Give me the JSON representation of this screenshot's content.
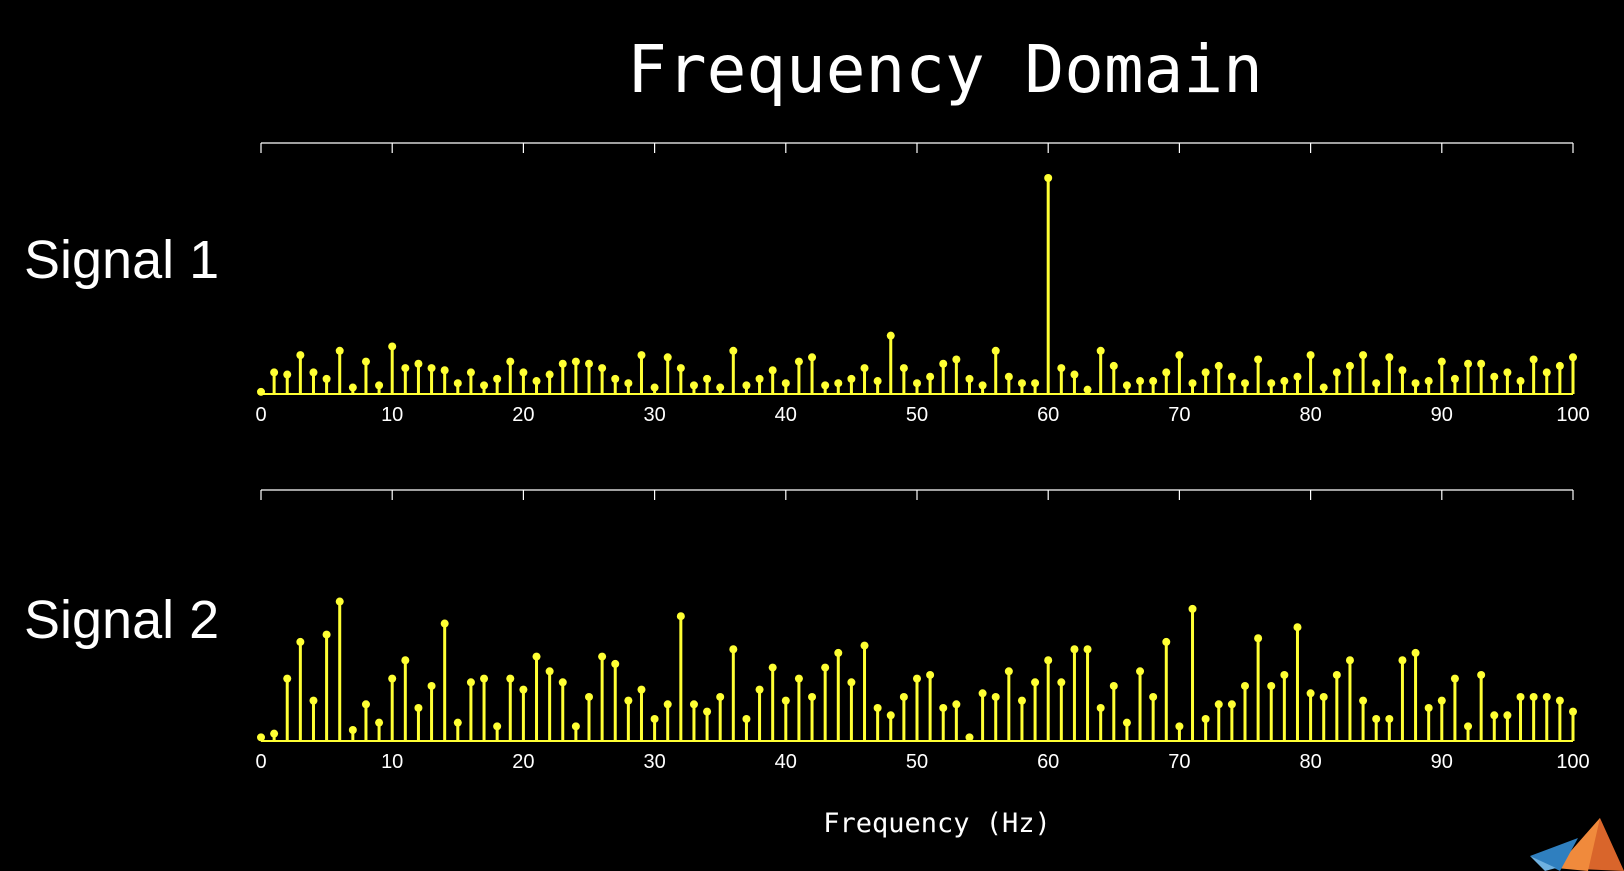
{
  "title": "Frequency Domain",
  "xlabel": "Frequency (Hz)",
  "colors": {
    "background": "#000000",
    "stem": "#ffff33",
    "text": "#ffffff",
    "axis": "#ffffff"
  },
  "logo_icon": "matlab-membrane-logo-icon",
  "chart_data": [
    {
      "type": "stem",
      "name": "Signal 1",
      "xlim": [
        0,
        100
      ],
      "ylim": [
        0,
        1
      ],
      "x_ticks": [
        0,
        10,
        20,
        30,
        40,
        50,
        60,
        70,
        80,
        90,
        100
      ],
      "x": [
        0,
        1,
        2,
        3,
        4,
        5,
        6,
        7,
        8,
        9,
        10,
        11,
        12,
        13,
        14,
        15,
        16,
        17,
        18,
        19,
        20,
        21,
        22,
        23,
        24,
        25,
        26,
        27,
        28,
        29,
        30,
        31,
        32,
        33,
        34,
        35,
        36,
        37,
        38,
        39,
        40,
        41,
        42,
        43,
        44,
        45,
        46,
        47,
        48,
        49,
        50,
        51,
        52,
        53,
        54,
        55,
        56,
        57,
        58,
        59,
        60,
        61,
        62,
        63,
        64,
        65,
        66,
        67,
        68,
        69,
        70,
        71,
        72,
        73,
        74,
        75,
        76,
        77,
        78,
        79,
        80,
        81,
        82,
        83,
        84,
        85,
        86,
        87,
        88,
        89,
        90,
        91,
        92,
        93,
        94,
        95,
        96,
        97,
        98,
        99,
        100
      ],
      "values": [
        0.01,
        0.1,
        0.09,
        0.18,
        0.1,
        0.07,
        0.2,
        0.03,
        0.15,
        0.04,
        0.22,
        0.12,
        0.14,
        0.12,
        0.11,
        0.05,
        0.1,
        0.04,
        0.07,
        0.15,
        0.1,
        0.06,
        0.09,
        0.14,
        0.15,
        0.14,
        0.12,
        0.07,
        0.05,
        0.18,
        0.03,
        0.17,
        0.12,
        0.04,
        0.07,
        0.03,
        0.2,
        0.04,
        0.07,
        0.11,
        0.05,
        0.15,
        0.17,
        0.04,
        0.05,
        0.07,
        0.12,
        0.06,
        0.27,
        0.12,
        0.05,
        0.08,
        0.14,
        0.16,
        0.07,
        0.04,
        0.2,
        0.08,
        0.05,
        0.05,
        1.0,
        0.12,
        0.09,
        0.02,
        0.2,
        0.13,
        0.04,
        0.06,
        0.06,
        0.1,
        0.18,
        0.05,
        0.1,
        0.13,
        0.08,
        0.05,
        0.16,
        0.05,
        0.06,
        0.08,
        0.18,
        0.03,
        0.1,
        0.13,
        0.18,
        0.05,
        0.17,
        0.11,
        0.05,
        0.06,
        0.15,
        0.07,
        0.14,
        0.14,
        0.08,
        0.1,
        0.06,
        0.16,
        0.1,
        0.13,
        0.17
      ]
    },
    {
      "type": "stem",
      "name": "Signal 2",
      "xlim": [
        0,
        100
      ],
      "ylim": [
        0,
        1
      ],
      "x_ticks": [
        0,
        10,
        20,
        30,
        40,
        50,
        60,
        70,
        80,
        90,
        100
      ],
      "x": [
        0,
        1,
        2,
        3,
        4,
        5,
        6,
        7,
        8,
        9,
        10,
        11,
        12,
        13,
        14,
        15,
        16,
        17,
        18,
        19,
        20,
        21,
        22,
        23,
        24,
        25,
        26,
        27,
        28,
        29,
        30,
        31,
        32,
        33,
        34,
        35,
        36,
        37,
        38,
        39,
        40,
        41,
        42,
        43,
        44,
        45,
        46,
        47,
        48,
        49,
        50,
        51,
        52,
        53,
        54,
        55,
        56,
        57,
        58,
        59,
        60,
        61,
        62,
        63,
        64,
        65,
        66,
        67,
        68,
        69,
        70,
        71,
        72,
        73,
        74,
        75,
        76,
        77,
        78,
        79,
        80,
        81,
        82,
        83,
        84,
        85,
        86,
        87,
        88,
        89,
        90,
        91,
        92,
        93,
        94,
        95,
        96,
        97,
        98,
        99,
        100
      ],
      "values": [
        0.01,
        0.02,
        0.17,
        0.27,
        0.11,
        0.29,
        0.38,
        0.03,
        0.1,
        0.05,
        0.17,
        0.22,
        0.09,
        0.15,
        0.32,
        0.05,
        0.16,
        0.17,
        0.04,
        0.17,
        0.14,
        0.23,
        0.19,
        0.16,
        0.04,
        0.12,
        0.23,
        0.21,
        0.11,
        0.14,
        0.06,
        0.1,
        0.34,
        0.1,
        0.08,
        0.12,
        0.25,
        0.06,
        0.14,
        0.2,
        0.11,
        0.17,
        0.12,
        0.2,
        0.24,
        0.16,
        0.26,
        0.09,
        0.07,
        0.12,
        0.17,
        0.18,
        0.09,
        0.1,
        0.01,
        0.13,
        0.12,
        0.19,
        0.11,
        0.16,
        0.22,
        0.16,
        0.25,
        0.25,
        0.09,
        0.15,
        0.05,
        0.19,
        0.12,
        0.27,
        0.04,
        0.36,
        0.06,
        0.1,
        0.1,
        0.15,
        0.28,
        0.15,
        0.18,
        0.31,
        0.13,
        0.12,
        0.18,
        0.22,
        0.11,
        0.06,
        0.06,
        0.22,
        0.24,
        0.09,
        0.11,
        0.17,
        0.04,
        0.18,
        0.07,
        0.07,
        0.12,
        0.12,
        0.12,
        0.11,
        0.08
      ]
    }
  ]
}
